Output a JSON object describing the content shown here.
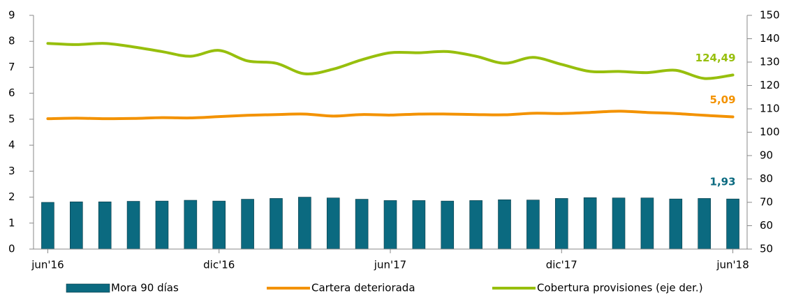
{
  "chart_data": {
    "type": "bar-line",
    "categories": [
      "jun'16",
      null,
      null,
      null,
      null,
      null,
      "dic'16",
      null,
      null,
      null,
      null,
      null,
      "jun'17",
      null,
      null,
      null,
      null,
      null,
      "dic'17",
      null,
      null,
      null,
      null,
      null,
      "jun'18"
    ],
    "series": [
      {
        "name": "Mora 90 días",
        "type": "bar",
        "color": "#0b6a80",
        "values": [
          1.8,
          1.82,
          1.82,
          1.84,
          1.85,
          1.88,
          1.85,
          1.92,
          1.95,
          2.0,
          1.97,
          1.92,
          1.87,
          1.87,
          1.85,
          1.87,
          1.9,
          1.89,
          1.95,
          1.98,
          1.97,
          1.97,
          1.93,
          1.95,
          1.93
        ],
        "value_labels": [
          null,
          null,
          null,
          null,
          null,
          null,
          null,
          null,
          null,
          null,
          null,
          null,
          null,
          null,
          null,
          null,
          null,
          null,
          null,
          null,
          null,
          null,
          null,
          null,
          "1,93"
        ]
      },
      {
        "name": "Cartera deteriorada",
        "type": "line",
        "color": "#f39200",
        "values": [
          5.02,
          5.04,
          5.02,
          5.03,
          5.06,
          5.05,
          5.1,
          5.15,
          5.18,
          5.2,
          5.12,
          5.18,
          5.16,
          5.2,
          5.2,
          5.18,
          5.17,
          5.23,
          5.22,
          5.26,
          5.31,
          5.26,
          5.22,
          5.15,
          5.09
        ],
        "value_labels": [
          null,
          null,
          null,
          null,
          null,
          null,
          null,
          null,
          null,
          null,
          null,
          null,
          null,
          null,
          null,
          null,
          null,
          null,
          null,
          null,
          null,
          null,
          null,
          null,
          "5,09"
        ]
      },
      {
        "name": "Cobertura provisiones (eje der.)",
        "type": "line",
        "axis": "y2",
        "color": "#97bf0d",
        "values": [
          138,
          137.5,
          138,
          136.5,
          134.5,
          132.5,
          135,
          130.5,
          129.5,
          125,
          127,
          131,
          134,
          134,
          134.5,
          132.5,
          129.5,
          132,
          129,
          126,
          126,
          125.5,
          126.5,
          123,
          124.49
        ],
        "value_labels": [
          null,
          null,
          null,
          null,
          null,
          null,
          null,
          null,
          null,
          null,
          null,
          null,
          null,
          null,
          null,
          null,
          null,
          null,
          null,
          null,
          null,
          null,
          null,
          null,
          "124,49"
        ]
      }
    ],
    "ylim": [
      0,
      9
    ],
    "yticks": [
      0,
      1,
      2,
      3,
      4,
      5,
      6,
      7,
      8,
      9
    ],
    "y2lim": [
      50,
      150
    ],
    "y2ticks": [
      50,
      60,
      70,
      80,
      90,
      100,
      110,
      120,
      130,
      140,
      150
    ],
    "legend": "bottom"
  }
}
